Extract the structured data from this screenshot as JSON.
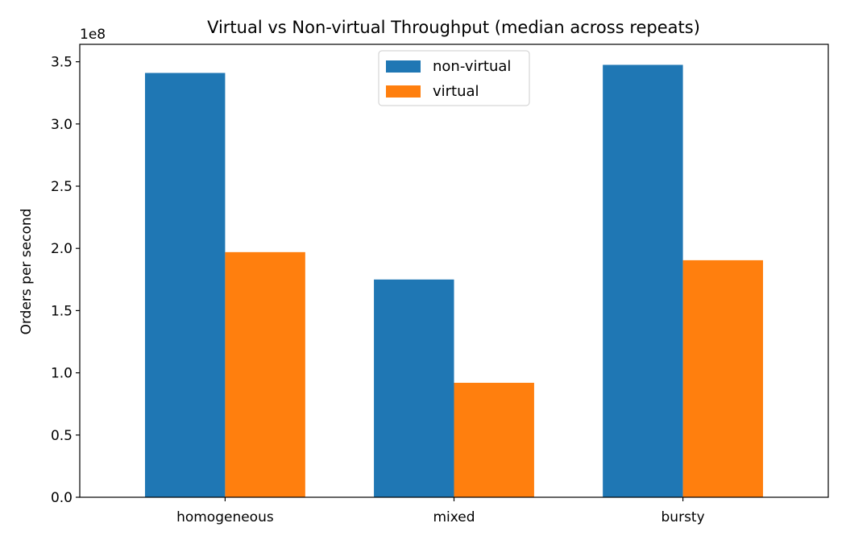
{
  "chart_data": {
    "type": "bar",
    "title": "Virtual vs Non-virtual Throughput (median across repeats)",
    "xlabel": "",
    "ylabel": "Orders per second",
    "y_offset_label": "1e8",
    "categories": [
      "homogeneous",
      "mixed",
      "bursty"
    ],
    "series": [
      {
        "name": "non-virtual",
        "color": "#1f77b4",
        "values": [
          341000000,
          175000000,
          347500000
        ]
      },
      {
        "name": "virtual",
        "color": "#ff7f0e",
        "values": [
          197000000,
          92000000,
          190500000
        ]
      }
    ],
    "ylim": [
      0,
      364000000
    ],
    "yticks": [
      0,
      50000000,
      100000000,
      150000000,
      200000000,
      250000000,
      300000000,
      350000000
    ],
    "ytick_labels": [
      "0.0",
      "0.5",
      "1.0",
      "1.5",
      "2.0",
      "2.5",
      "3.0",
      "3.5"
    ],
    "grid": false,
    "legend_position": "upper-center"
  }
}
